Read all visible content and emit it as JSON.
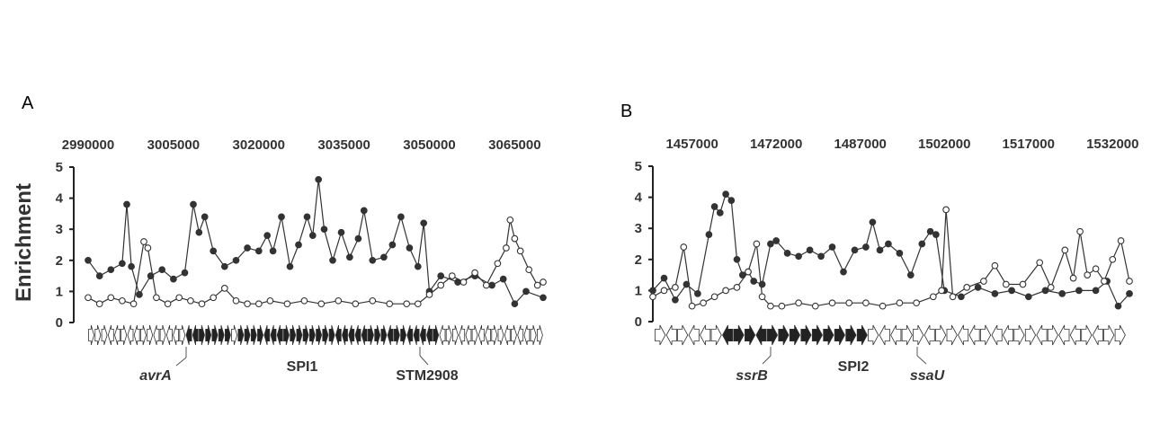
{
  "figure": {
    "ylabel": "Enrichment"
  },
  "chart_data": [
    {
      "panel": "A",
      "type": "line",
      "xlabel": "",
      "ylabel": "Enrichment",
      "xlim": [
        2990000,
        3070000
      ],
      "x_ticks": [
        2990000,
        3005000,
        3020000,
        3035000,
        3050000,
        3065000
      ],
      "x_tick_labels": [
        "2990000",
        "3005000",
        "3020000",
        "3035000",
        "3050000",
        "3065000"
      ],
      "ylim": [
        0,
        5
      ],
      "y_ticks": [
        0,
        1,
        2,
        3,
        4,
        5
      ],
      "grid": false,
      "legend": "none",
      "island_region": [
        3007000,
        3050000
      ],
      "annotations": [
        "avrA",
        "SPI1",
        "STM2908"
      ],
      "series": [
        {
          "marker": "filled-circle",
          "color": "#333333",
          "points": [
            [
              2990000,
              2.0
            ],
            [
              2992000,
              1.5
            ],
            [
              2994000,
              1.7
            ],
            [
              2996000,
              1.9
            ],
            [
              2996800,
              3.8
            ],
            [
              2997600,
              1.8
            ],
            [
              2999000,
              0.9
            ],
            [
              3001000,
              1.5
            ],
            [
              3003000,
              1.7
            ],
            [
              3005000,
              1.4
            ],
            [
              3007000,
              1.6
            ],
            [
              3008500,
              3.8
            ],
            [
              3009500,
              2.9
            ],
            [
              3010500,
              3.4
            ],
            [
              3012000,
              2.3
            ],
            [
              3014000,
              1.8
            ],
            [
              3016000,
              2.0
            ],
            [
              3018000,
              2.4
            ],
            [
              3020000,
              2.3
            ],
            [
              3021500,
              2.8
            ],
            [
              3022500,
              2.3
            ],
            [
              3024000,
              3.4
            ],
            [
              3025500,
              1.8
            ],
            [
              3027000,
              2.5
            ],
            [
              3028500,
              3.4
            ],
            [
              3029500,
              2.8
            ],
            [
              3030500,
              4.6
            ],
            [
              3031500,
              3.0
            ],
            [
              3033000,
              2.0
            ],
            [
              3034500,
              2.9
            ],
            [
              3036000,
              2.1
            ],
            [
              3037500,
              2.7
            ],
            [
              3038500,
              3.6
            ],
            [
              3040000,
              2.0
            ],
            [
              3042000,
              2.1
            ],
            [
              3043500,
              2.5
            ],
            [
              3045000,
              3.4
            ],
            [
              3046500,
              2.4
            ],
            [
              3048000,
              1.8
            ],
            [
              3049000,
              3.2
            ],
            [
              3050000,
              1.0
            ],
            [
              3052000,
              1.5
            ],
            [
              3055000,
              1.3
            ],
            [
              3058000,
              1.5
            ],
            [
              3061000,
              1.2
            ],
            [
              3063000,
              1.4
            ],
            [
              3065000,
              0.6
            ],
            [
              3067000,
              1.0
            ],
            [
              3070000,
              0.8
            ]
          ]
        },
        {
          "marker": "open-circle",
          "color": "#333333",
          "points": [
            [
              2990000,
              0.8
            ],
            [
              2992000,
              0.6
            ],
            [
              2994000,
              0.8
            ],
            [
              2996000,
              0.7
            ],
            [
              2998000,
              0.6
            ],
            [
              2999800,
              2.6
            ],
            [
              3000500,
              2.4
            ],
            [
              3002000,
              0.8
            ],
            [
              3004000,
              0.6
            ],
            [
              3006000,
              0.8
            ],
            [
              3008000,
              0.7
            ],
            [
              3010000,
              0.6
            ],
            [
              3012000,
              0.8
            ],
            [
              3014000,
              1.1
            ],
            [
              3016000,
              0.7
            ],
            [
              3018000,
              0.6
            ],
            [
              3020000,
              0.6
            ],
            [
              3022000,
              0.7
            ],
            [
              3025000,
              0.6
            ],
            [
              3028000,
              0.7
            ],
            [
              3031000,
              0.6
            ],
            [
              3034000,
              0.7
            ],
            [
              3037000,
              0.6
            ],
            [
              3040000,
              0.7
            ],
            [
              3043000,
              0.6
            ],
            [
              3046000,
              0.6
            ],
            [
              3048000,
              0.6
            ],
            [
              3050000,
              0.9
            ],
            [
              3052000,
              1.2
            ],
            [
              3054000,
              1.5
            ],
            [
              3056000,
              1.3
            ],
            [
              3058000,
              1.6
            ],
            [
              3060000,
              1.2
            ],
            [
              3062000,
              1.9
            ],
            [
              3063500,
              2.4
            ],
            [
              3064200,
              3.3
            ],
            [
              3065000,
              2.7
            ],
            [
              3066000,
              2.3
            ],
            [
              3067500,
              1.7
            ],
            [
              3069000,
              1.2
            ],
            [
              3070000,
              1.3
            ]
          ]
        }
      ],
      "gene_map": [
        [
          "r",
          3
        ],
        [
          "l",
          2
        ],
        [
          "r",
          1
        ],
        [
          "l",
          2
        ],
        [
          "r",
          2
        ],
        [
          "l",
          1
        ],
        [
          "r",
          1
        ],
        [
          "l",
          2
        ],
        [
          "r",
          1
        ],
        [
          "L",
          2
        ],
        [
          "R",
          5
        ],
        [
          "r",
          1
        ],
        [
          "R",
          4
        ],
        [
          "L",
          3
        ],
        [
          "R",
          8
        ],
        [
          "L",
          5
        ],
        [
          "R",
          3
        ],
        [
          "L",
          1
        ],
        [
          "R",
          2
        ],
        [
          "L",
          4
        ],
        [
          "R",
          1
        ],
        [
          "l",
          1
        ],
        [
          "r",
          2
        ],
        [
          "l",
          2
        ],
        [
          "r",
          1
        ],
        [
          "l",
          2
        ],
        [
          "r",
          2
        ],
        [
          "l",
          1
        ],
        [
          "r",
          1
        ],
        [
          "l",
          2
        ],
        [
          "r",
          2
        ]
      ]
    },
    {
      "panel": "B",
      "type": "line",
      "xlabel": "",
      "ylabel": "Enrichment",
      "xlim": [
        1450000,
        1535000
      ],
      "x_ticks": [
        1457000,
        1472000,
        1487000,
        1502000,
        1517000,
        1532000
      ],
      "x_tick_labels": [
        "1457000",
        "1472000",
        "1487000",
        "1502000",
        "1517000",
        "1532000"
      ],
      "ylim": [
        0,
        5
      ],
      "y_ticks": [
        0,
        1,
        2,
        3,
        4,
        5
      ],
      "grid": false,
      "legend": "none",
      "island_region": [
        1469000,
        1502500
      ],
      "annotations": [
        "ssrB",
        "SPI2",
        "ssaU"
      ],
      "series": [
        {
          "marker": "filled-circle",
          "color": "#333333",
          "points": [
            [
              1450000,
              1.0
            ],
            [
              1452000,
              1.4
            ],
            [
              1454000,
              0.7
            ],
            [
              1456000,
              1.2
            ],
            [
              1458000,
              0.9
            ],
            [
              1460000,
              2.8
            ],
            [
              1461000,
              3.7
            ],
            [
              1462000,
              3.5
            ],
            [
              1463000,
              4.1
            ],
            [
              1464000,
              3.9
            ],
            [
              1465000,
              2.0
            ],
            [
              1466000,
              1.5
            ],
            [
              1467000,
              1.6
            ],
            [
              1468000,
              1.3
            ],
            [
              1469500,
              1.2
            ],
            [
              1471000,
              2.5
            ],
            [
              1472000,
              2.6
            ],
            [
              1474000,
              2.2
            ],
            [
              1476000,
              2.1
            ],
            [
              1478000,
              2.3
            ],
            [
              1480000,
              2.1
            ],
            [
              1482000,
              2.4
            ],
            [
              1484000,
              1.6
            ],
            [
              1486000,
              2.3
            ],
            [
              1488000,
              2.4
            ],
            [
              1489200,
              3.2
            ],
            [
              1490500,
              2.3
            ],
            [
              1492000,
              2.5
            ],
            [
              1494000,
              2.2
            ],
            [
              1496000,
              1.5
            ],
            [
              1498000,
              2.5
            ],
            [
              1499500,
              2.9
            ],
            [
              1500500,
              2.8
            ],
            [
              1502000,
              1.0
            ],
            [
              1505000,
              0.8
            ],
            [
              1508000,
              1.1
            ],
            [
              1511000,
              0.9
            ],
            [
              1514000,
              1.0
            ],
            [
              1517000,
              0.8
            ],
            [
              1520000,
              1.0
            ],
            [
              1523000,
              0.9
            ],
            [
              1526000,
              1.0
            ],
            [
              1529000,
              1.0
            ],
            [
              1531000,
              1.3
            ],
            [
              1533000,
              0.5
            ],
            [
              1535000,
              0.9
            ]
          ]
        },
        {
          "marker": "open-circle",
          "color": "#333333",
          "points": [
            [
              1450000,
              0.8
            ],
            [
              1452000,
              1.0
            ],
            [
              1454000,
              1.1
            ],
            [
              1455500,
              2.4
            ],
            [
              1457000,
              0.5
            ],
            [
              1459000,
              0.6
            ],
            [
              1461000,
              0.8
            ],
            [
              1463000,
              1.0
            ],
            [
              1465000,
              1.1
            ],
            [
              1467000,
              1.6
            ],
            [
              1468500,
              2.5
            ],
            [
              1469500,
              0.8
            ],
            [
              1471000,
              0.5
            ],
            [
              1473000,
              0.5
            ],
            [
              1476000,
              0.6
            ],
            [
              1479000,
              0.5
            ],
            [
              1482000,
              0.6
            ],
            [
              1485000,
              0.6
            ],
            [
              1488000,
              0.6
            ],
            [
              1491000,
              0.5
            ],
            [
              1494000,
              0.6
            ],
            [
              1497000,
              0.6
            ],
            [
              1500000,
              0.8
            ],
            [
              1501500,
              1.0
            ],
            [
              1502300,
              3.6
            ],
            [
              1503500,
              0.8
            ],
            [
              1506000,
              1.1
            ],
            [
              1509000,
              1.3
            ],
            [
              1511000,
              1.8
            ],
            [
              1513000,
              1.2
            ],
            [
              1516000,
              1.2
            ],
            [
              1519000,
              1.9
            ],
            [
              1521000,
              1.1
            ],
            [
              1523500,
              2.3
            ],
            [
              1525000,
              1.4
            ],
            [
              1526200,
              2.9
            ],
            [
              1527500,
              1.5
            ],
            [
              1529000,
              1.7
            ],
            [
              1530500,
              1.3
            ],
            [
              1532000,
              2.0
            ],
            [
              1533500,
              2.6
            ],
            [
              1535000,
              1.3
            ]
          ]
        }
      ],
      "gene_map": [
        [
          "r",
          1
        ],
        [
          "l",
          1
        ],
        [
          "r",
          1
        ],
        [
          "l",
          2
        ],
        [
          "r",
          1
        ],
        [
          "L",
          1
        ],
        [
          "R",
          2
        ],
        [
          "L",
          1
        ],
        [
          "R",
          9
        ],
        [
          "r",
          1
        ],
        [
          "l",
          2
        ],
        [
          "r",
          2
        ],
        [
          "l",
          1
        ],
        [
          "r",
          2
        ],
        [
          "l",
          2
        ],
        [
          "r",
          1
        ],
        [
          "l",
          2
        ],
        [
          "r",
          2
        ],
        [
          "l",
          1
        ],
        [
          "r",
          1
        ],
        [
          "l",
          2
        ],
        [
          "r",
          1
        ],
        [
          "l",
          1
        ],
        [
          "r",
          2
        ]
      ]
    }
  ]
}
